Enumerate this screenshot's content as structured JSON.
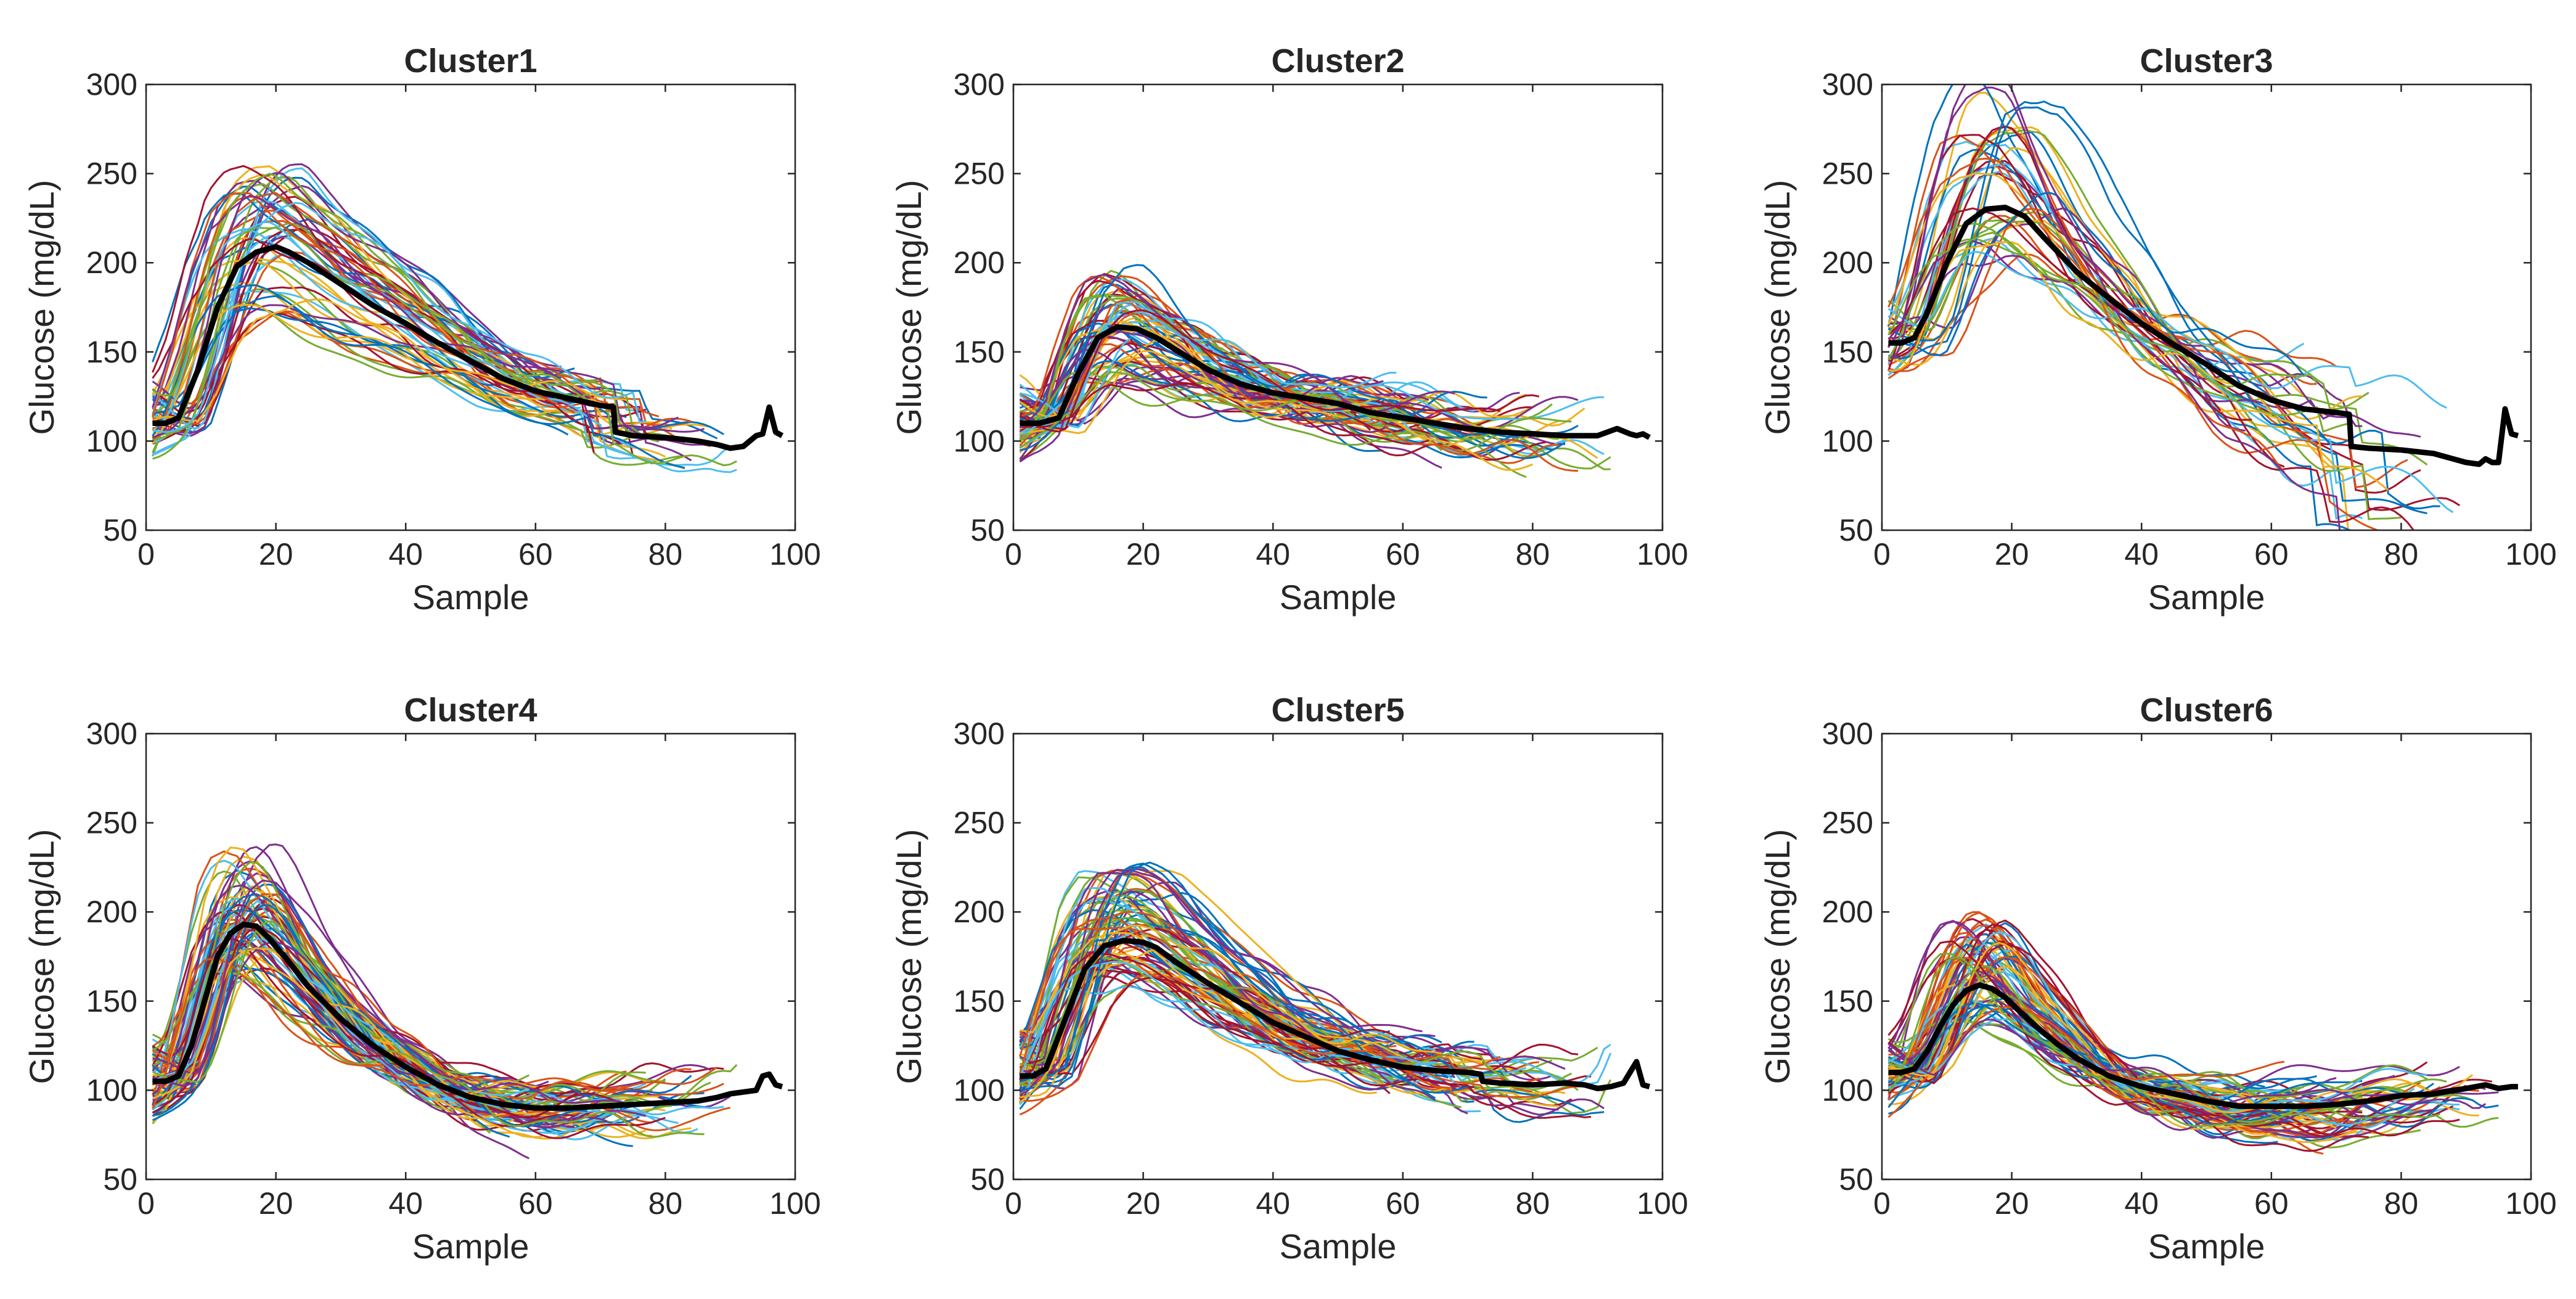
{
  "figure": {
    "palette": [
      "#0072BD",
      "#D95319",
      "#EDB120",
      "#7E2F8E",
      "#77AC30",
      "#4DBEEE",
      "#A2142F"
    ],
    "mean_color": "#000000"
  },
  "chart_data": [
    {
      "type": "line",
      "title": "Cluster1",
      "xlabel": "Sample",
      "ylabel": "Glucose (mg/dL)",
      "xlim": [
        0,
        100
      ],
      "ylim": [
        50,
        300
      ],
      "xticks": [
        "0",
        "20",
        "40",
        "60",
        "80",
        "100"
      ],
      "yticks": [
        "50",
        "100",
        "150",
        "200",
        "250",
        "300"
      ],
      "mean": {
        "x": [
          1,
          3,
          5,
          8,
          11,
          14,
          17,
          20,
          22,
          25,
          30,
          35,
          40,
          45,
          50,
          55,
          60,
          65,
          70,
          72,
          72.3,
          75,
          80,
          85,
          88,
          90,
          92,
          93,
          94,
          95,
          96,
          97,
          98
        ],
        "y": [
          110,
          110,
          113,
          140,
          175,
          198,
          206,
          209,
          206,
          200,
          188,
          176,
          166,
          155,
          145,
          135,
          128,
          124,
          120,
          119,
          105,
          103,
          102,
          100,
          98,
          96,
          97,
          100,
          103,
          104,
          119,
          105,
          103
        ]
      },
      "band": {
        "peak_x": 20,
        "peak_spread": 5,
        "peak_low": 165,
        "peak_high": 255,
        "end_x_min": 60,
        "end_x_max": 93,
        "noise": 6,
        "count": 55
      }
    },
    {
      "type": "line",
      "title": "Cluster2",
      "xlabel": "Sample",
      "ylabel": "Glucose (mg/dL)",
      "xlim": [
        0,
        100
      ],
      "ylim": [
        50,
        300
      ],
      "xticks": [
        "0",
        "20",
        "40",
        "60",
        "80",
        "100"
      ],
      "yticks": [
        "50",
        "100",
        "150",
        "200",
        "250",
        "300"
      ],
      "mean": {
        "x": [
          1,
          4,
          7,
          10,
          13,
          16,
          19,
          22,
          26,
          30,
          35,
          40,
          45,
          50,
          55,
          60,
          65,
          70,
          75,
          80,
          85,
          90,
          93,
          95,
          96,
          97,
          98
        ],
        "y": [
          110,
          110,
          113,
          138,
          158,
          164,
          163,
          158,
          149,
          140,
          132,
          127,
          124,
          121,
          116,
          113,
          110,
          107,
          105,
          104,
          103,
          103,
          107,
          104,
          103,
          104,
          102
        ]
      },
      "band": {
        "peak_x": 15,
        "peak_spread": 4,
        "peak_low": 135,
        "peak_high": 192,
        "end_x_min": 55,
        "end_x_max": 93,
        "noise": 8,
        "count": 70
      }
    },
    {
      "type": "line",
      "title": "Cluster3",
      "xlabel": "Sample",
      "ylabel": "Glucose (mg/dL)",
      "xlim": [
        0,
        100
      ],
      "ylim": [
        50,
        300
      ],
      "xticks": [
        "0",
        "20",
        "40",
        "60",
        "80",
        "100"
      ],
      "yticks": [
        "50",
        "100",
        "150",
        "200",
        "250",
        "300"
      ],
      "mean": {
        "x": [
          1,
          3,
          5,
          7,
          10,
          13,
          16,
          19,
          22,
          25,
          30,
          35,
          40,
          45,
          50,
          55,
          60,
          65,
          70,
          72,
          72.3,
          75,
          80,
          85,
          88,
          90,
          92,
          93,
          94,
          95,
          96,
          97,
          98
        ],
        "y": [
          155,
          155,
          158,
          172,
          200,
          222,
          230,
          231,
          226,
          214,
          195,
          180,
          166,
          154,
          143,
          131,
          123,
          118,
          116,
          115,
          97,
          96,
          95,
          93,
          90,
          88,
          87,
          90,
          88,
          88,
          118,
          104,
          103
        ]
      },
      "band": {
        "peak_x": 20,
        "peak_spread": 6,
        "peak_low": 195,
        "peak_high": 305,
        "end_x_min": 55,
        "end_x_max": 90,
        "noise": 10,
        "count": 40
      }
    },
    {
      "type": "line",
      "title": "Cluster4",
      "xlabel": "Sample",
      "ylabel": "Glucose (mg/dL)",
      "xlim": [
        0,
        100
      ],
      "ylim": [
        50,
        300
      ],
      "xticks": [
        "0",
        "20",
        "40",
        "60",
        "80",
        "100"
      ],
      "yticks": [
        "50",
        "100",
        "150",
        "200",
        "250",
        "300"
      ],
      "mean": {
        "x": [
          1,
          3,
          5,
          7,
          9,
          11,
          13,
          15,
          17,
          19,
          22,
          25,
          30,
          35,
          40,
          45,
          50,
          55,
          60,
          65,
          70,
          75,
          80,
          85,
          88,
          90,
          92,
          94,
          95,
          96,
          97,
          98
        ],
        "y": [
          105,
          105,
          108,
          125,
          150,
          175,
          188,
          193,
          192,
          185,
          172,
          158,
          140,
          125,
          113,
          103,
          96,
          92,
          90,
          90,
          91,
          92,
          93,
          94,
          96,
          98,
          99,
          100,
          108,
          109,
          103,
          102
        ]
      },
      "band": {
        "peak_x": 16,
        "peak_spread": 4,
        "peak_low": 165,
        "peak_high": 240,
        "end_x_min": 50,
        "end_x_max": 92,
        "noise": 7,
        "count": 75
      }
    },
    {
      "type": "line",
      "title": "Cluster5",
      "xlabel": "Sample",
      "ylabel": "Glucose (mg/dL)",
      "xlim": [
        0,
        100
      ],
      "ylim": [
        50,
        300
      ],
      "xticks": [
        "0",
        "20",
        "40",
        "60",
        "80",
        "100"
      ],
      "yticks": [
        "50",
        "100",
        "150",
        "200",
        "250",
        "300"
      ],
      "mean": {
        "x": [
          1,
          3,
          5,
          8,
          11,
          14,
          17,
          20,
          22,
          25,
          30,
          35,
          40,
          45,
          50,
          55,
          60,
          65,
          70,
          72,
          72.3,
          75,
          80,
          85,
          88,
          90,
          92,
          94,
          95,
          96,
          97,
          98
        ],
        "y": [
          108,
          108,
          112,
          140,
          168,
          181,
          184,
          183,
          180,
          172,
          160,
          149,
          138,
          130,
          122,
          117,
          113,
          111,
          110,
          109,
          105,
          104,
          103,
          104,
          103,
          101,
          102,
          104,
          110,
          116,
          103,
          102
        ]
      },
      "band": {
        "peak_x": 18,
        "peak_spread": 5,
        "peak_low": 160,
        "peak_high": 230,
        "end_x_min": 55,
        "end_x_max": 93,
        "noise": 7,
        "count": 80
      }
    },
    {
      "type": "line",
      "title": "Cluster6",
      "xlabel": "Sample",
      "ylabel": "Glucose (mg/dL)",
      "xlim": [
        0,
        100
      ],
      "ylim": [
        50,
        300
      ],
      "xticks": [
        "0",
        "20",
        "40",
        "60",
        "80",
        "100"
      ],
      "yticks": [
        "50",
        "100",
        "150",
        "200",
        "250",
        "300"
      ],
      "mean": {
        "x": [
          1,
          3,
          5,
          7,
          9,
          11,
          13,
          15,
          17,
          19,
          21,
          24,
          27,
          30,
          35,
          40,
          45,
          50,
          55,
          60,
          65,
          70,
          75,
          80,
          85,
          90,
          93,
          95,
          97,
          98
        ],
        "y": [
          110,
          110,
          112,
          122,
          136,
          148,
          156,
          159,
          157,
          152,
          145,
          135,
          126,
          118,
          108,
          102,
          98,
          94,
          91,
          91,
          91,
          92,
          94,
          97,
          98,
          101,
          103,
          101,
          102,
          102
        ]
      },
      "band": {
        "peak_x": 15,
        "peak_spread": 4,
        "peak_low": 135,
        "peak_high": 200,
        "end_x_min": 55,
        "end_x_max": 96,
        "noise": 7,
        "count": 75
      }
    }
  ]
}
